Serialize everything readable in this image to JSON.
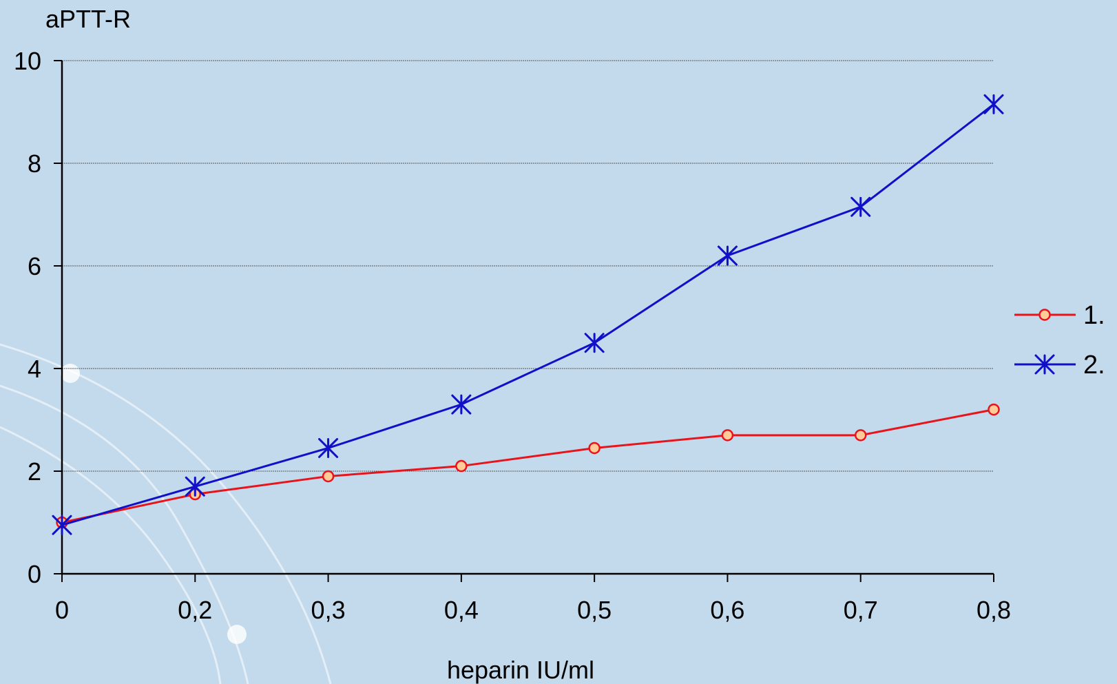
{
  "chart_data": {
    "type": "line",
    "x_labels": [
      "0",
      "0,2",
      "0,3",
      "0,4",
      "0,5",
      "0,6",
      "0,7",
      "0,8"
    ],
    "xlabel": "heparin IU/ml",
    "ylabel": "aPTT-R",
    "ylim": [
      0,
      10
    ],
    "y_ticks": [
      "0",
      "2",
      "4",
      "6",
      "8",
      "10"
    ],
    "grid": true,
    "legend_position": "right",
    "series": [
      {
        "name": "1.",
        "marker": "circle",
        "color": "#e8141b",
        "marker_fill": "#ffcc99",
        "values": [
          1.0,
          1.55,
          1.9,
          2.1,
          2.45,
          2.7,
          2.7,
          3.2
        ]
      },
      {
        "name": "2.",
        "marker": "asterisk",
        "color": "#1010c8",
        "values": [
          0.95,
          1.7,
          2.45,
          3.3,
          4.5,
          6.2,
          7.15,
          9.15
        ]
      }
    ]
  }
}
